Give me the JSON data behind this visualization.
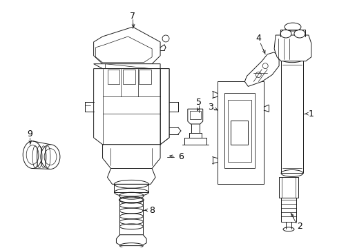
{
  "bg_color": "#ffffff",
  "line_color": "#1a1a1a",
  "label_color": "#000000",
  "label_fontsize": 9,
  "figsize": [
    4.89,
    3.6
  ],
  "dpi": 100
}
